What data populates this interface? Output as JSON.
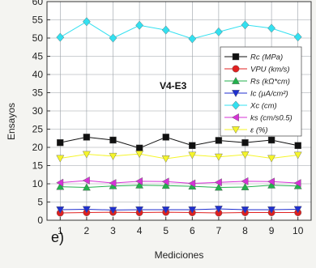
{
  "chart_data": {
    "type": "line",
    "panel_label": "e)",
    "annotation": "V4-E3",
    "xlabel": "Mediciones",
    "ylabel": "Ensayos",
    "x": [
      1,
      2,
      3,
      4,
      5,
      6,
      7,
      8,
      9,
      10
    ],
    "xlim": [
      0.5,
      10.5
    ],
    "ylim": [
      0,
      60
    ],
    "yticks": [
      0,
      5,
      10,
      15,
      20,
      25,
      30,
      35,
      40,
      45,
      50,
      55,
      60
    ],
    "grid": true,
    "legend_position": "right",
    "series": [
      {
        "key": "rc",
        "name": "Rc (MPa)",
        "color": "#111111",
        "marker": "square",
        "values": [
          21.3,
          22.8,
          22.0,
          19.8,
          22.8,
          20.5,
          21.9,
          21.3,
          22.0,
          20.5
        ]
      },
      {
        "key": "vpu",
        "name": "VPU (km/s)",
        "color": "#e02020",
        "marker": "circle",
        "values": [
          2.0,
          2.1,
          2.2,
          2.1,
          2.2,
          2.1,
          2.0,
          2.1,
          2.1,
          2.1
        ]
      },
      {
        "key": "rs",
        "name": "Rs (kΩ*cm)",
        "color": "#22b14c",
        "marker": "triangle-up",
        "values": [
          9.2,
          9.0,
          9.4,
          9.6,
          9.5,
          9.3,
          9.0,
          9.1,
          9.6,
          9.4
        ]
      },
      {
        "key": "ic",
        "name": "Ic (µA/cm²)",
        "color": "#1f2fcf",
        "marker": "triangle-down",
        "values": [
          2.9,
          3.0,
          2.8,
          2.9,
          2.9,
          2.9,
          3.1,
          2.9,
          2.9,
          3.0
        ]
      },
      {
        "key": "xc",
        "name": "Xc (cm)",
        "color": "#33e0f0",
        "marker": "diamond",
        "values": [
          50.2,
          54.5,
          50.0,
          53.5,
          52.2,
          49.8,
          51.7,
          53.6,
          52.7,
          50.3
        ]
      },
      {
        "key": "ks",
        "name": "ks (cm/s0.5)",
        "color": "#d633d6",
        "marker": "triangle-left",
        "values": [
          10.3,
          10.9,
          10.2,
          10.7,
          10.6,
          10.1,
          10.4,
          10.7,
          10.6,
          10.2
        ]
      },
      {
        "key": "eps",
        "name": "ε (%)",
        "color": "#f5f52a",
        "marker": "triangle-down",
        "values": [
          17.0,
          18.1,
          17.6,
          18.2,
          16.9,
          17.9,
          17.4,
          18.0,
          17.0,
          17.9
        ]
      }
    ]
  }
}
